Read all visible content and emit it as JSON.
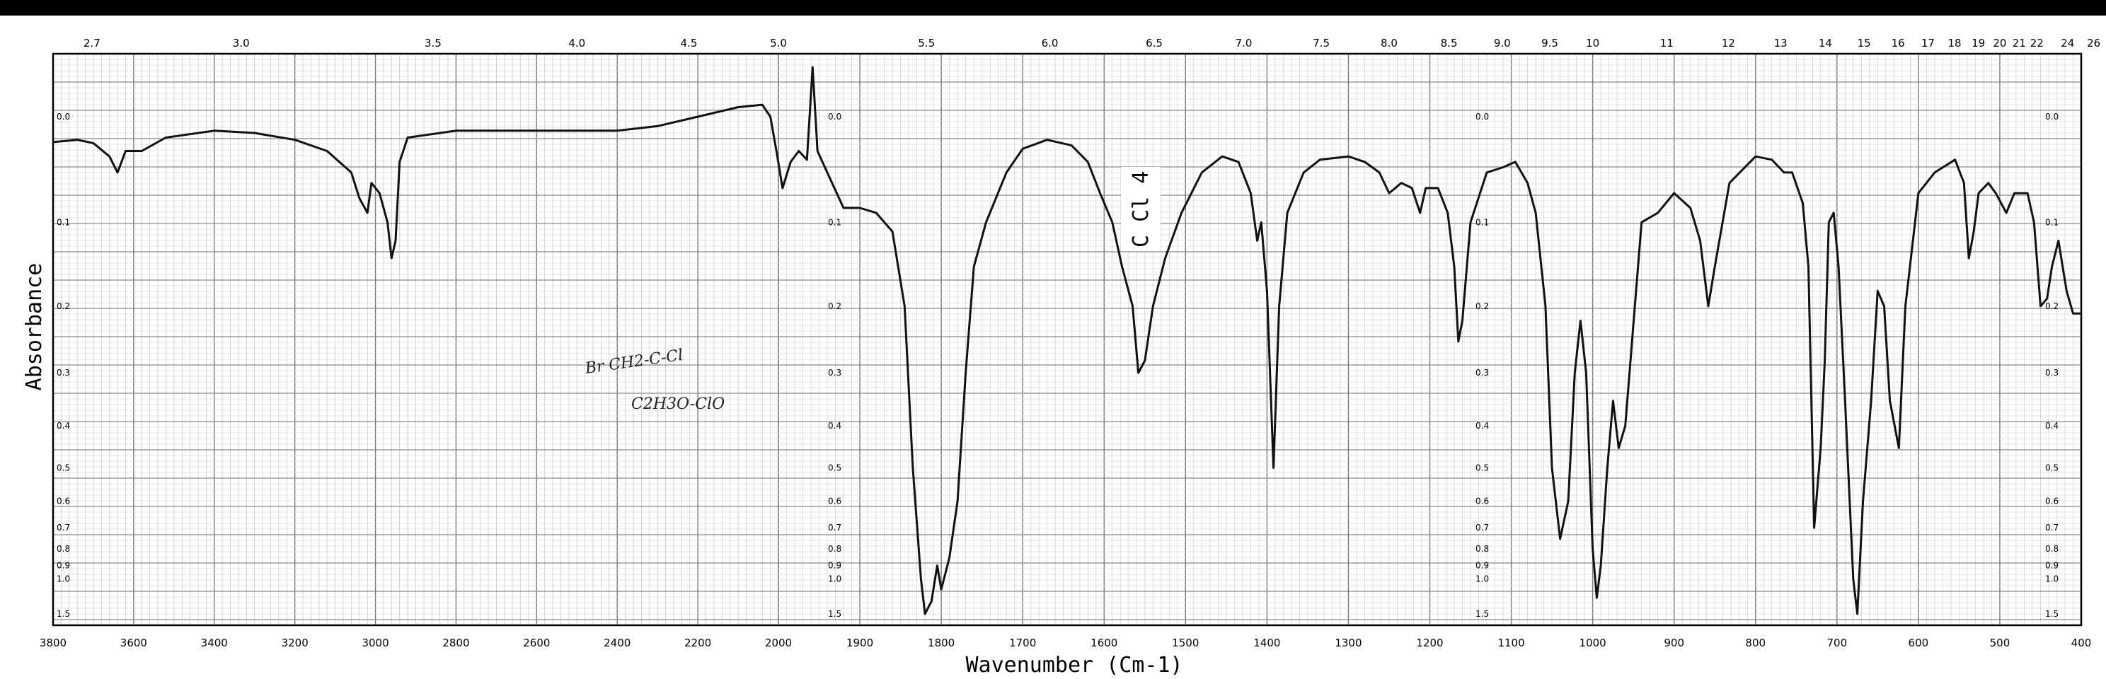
{
  "chart_data": {
    "type": "line",
    "title": "",
    "xlabel": "Wavenumber (Cm-1)",
    "ylabel": "Absorbance",
    "x_reversed": true,
    "bottom_ticks": [
      3800,
      3600,
      3400,
      3200,
      3000,
      2800,
      2600,
      2400,
      2200,
      2000,
      1900,
      1800,
      1700,
      1600,
      1500,
      1400,
      1300,
      1200,
      1100,
      1000,
      900,
      800,
      700,
      600,
      500,
      400
    ],
    "top_ticks_microns": [
      "2.7",
      "3.0",
      "3.5",
      "4.0",
      "4.5",
      "5.0",
      "5.5",
      "6.0",
      "6.5",
      "7.0",
      "7.5",
      "8.0",
      "8.5",
      "9.0",
      "9.5",
      "10",
      "11",
      "12",
      "13",
      "14",
      "15",
      "16",
      "17",
      "18",
      "19",
      "20",
      "21",
      "22",
      "24",
      "26"
    ],
    "absorbance_ticks": [
      "0.0",
      "0.1",
      "0.2",
      "0.3",
      "0.4",
      "0.5",
      "0.6",
      "0.7",
      "0.8",
      "0.9",
      "1.0",
      "1.5"
    ],
    "annotations": {
      "solvent_band": "C Cl 4",
      "handwritten_1": "Br CH2-C-Cl",
      "handwritten_2": "C2H3O-ClO"
    },
    "series": [
      {
        "points": [
          [
            3800,
            0.022
          ],
          [
            3740,
            0.02
          ],
          [
            3700,
            0.023
          ],
          [
            3660,
            0.035
          ],
          [
            3640,
            0.05
          ],
          [
            3620,
            0.03
          ],
          [
            3580,
            0.03
          ],
          [
            3520,
            0.018
          ],
          [
            3400,
            0.012
          ],
          [
            3300,
            0.014
          ],
          [
            3200,
            0.02
          ],
          [
            3120,
            0.03
          ],
          [
            3060,
            0.05
          ],
          [
            3040,
            0.075
          ],
          [
            3020,
            0.09
          ],
          [
            3010,
            0.06
          ],
          [
            2990,
            0.07
          ],
          [
            2970,
            0.1
          ],
          [
            2960,
            0.14
          ],
          [
            2950,
            0.12
          ],
          [
            2940,
            0.04
          ],
          [
            2920,
            0.018
          ],
          [
            2800,
            0.012
          ],
          [
            2600,
            0.012
          ],
          [
            2400,
            0.012
          ],
          [
            2300,
            0.008
          ],
          [
            2200,
            0.0
          ],
          [
            2100,
            -0.008
          ],
          [
            2040,
            -0.01
          ],
          [
            2020,
            0.0
          ],
          [
            2005,
            0.03
          ],
          [
            1995,
            0.065
          ],
          [
            1985,
            0.04
          ],
          [
            1975,
            0.03
          ],
          [
            1965,
            0.038
          ],
          [
            1958,
            -0.04
          ],
          [
            1952,
            0.03
          ],
          [
            1940,
            0.05
          ],
          [
            1920,
            0.085
          ],
          [
            1900,
            0.085
          ],
          [
            1880,
            0.09
          ],
          [
            1860,
            0.11
          ],
          [
            1845,
            0.2
          ],
          [
            1835,
            0.5
          ],
          [
            1825,
            1.0
          ],
          [
            1820,
            1.5
          ],
          [
            1812,
            1.25
          ],
          [
            1805,
            0.9
          ],
          [
            1800,
            1.1
          ],
          [
            1790,
            0.85
          ],
          [
            1780,
            0.6
          ],
          [
            1770,
            0.3
          ],
          [
            1760,
            0.15
          ],
          [
            1745,
            0.1
          ],
          [
            1720,
            0.05
          ],
          [
            1700,
            0.028
          ],
          [
            1670,
            0.02
          ],
          [
            1640,
            0.025
          ],
          [
            1620,
            0.04
          ],
          [
            1605,
            0.07
          ],
          [
            1590,
            0.1
          ],
          [
            1578,
            0.15
          ],
          [
            1565,
            0.2
          ],
          [
            1558,
            0.3
          ],
          [
            1550,
            0.28
          ],
          [
            1540,
            0.2
          ],
          [
            1525,
            0.14
          ],
          [
            1505,
            0.09
          ],
          [
            1480,
            0.05
          ],
          [
            1455,
            0.035
          ],
          [
            1435,
            0.04
          ],
          [
            1420,
            0.07
          ],
          [
            1412,
            0.12
          ],
          [
            1407,
            0.1
          ],
          [
            1400,
            0.18
          ],
          [
            1392,
            0.5
          ],
          [
            1385,
            0.2
          ],
          [
            1375,
            0.09
          ],
          [
            1355,
            0.05
          ],
          [
            1335,
            0.038
          ],
          [
            1300,
            0.035
          ],
          [
            1280,
            0.04
          ],
          [
            1262,
            0.05
          ],
          [
            1250,
            0.07
          ],
          [
            1235,
            0.06
          ],
          [
            1222,
            0.065
          ],
          [
            1212,
            0.09
          ],
          [
            1205,
            0.065
          ],
          [
            1190,
            0.065
          ],
          [
            1178,
            0.09
          ],
          [
            1170,
            0.15
          ],
          [
            1165,
            0.25
          ],
          [
            1160,
            0.22
          ],
          [
            1150,
            0.1
          ],
          [
            1130,
            0.05
          ],
          [
            1110,
            0.045
          ],
          [
            1095,
            0.04
          ],
          [
            1080,
            0.06
          ],
          [
            1070,
            0.09
          ],
          [
            1058,
            0.2
          ],
          [
            1050,
            0.5
          ],
          [
            1040,
            0.75
          ],
          [
            1030,
            0.6
          ],
          [
            1022,
            0.3
          ],
          [
            1015,
            0.22
          ],
          [
            1008,
            0.3
          ],
          [
            1000,
            0.8
          ],
          [
            995,
            1.2
          ],
          [
            990,
            0.9
          ],
          [
            982,
            0.5
          ],
          [
            975,
            0.35
          ],
          [
            968,
            0.45
          ],
          [
            960,
            0.4
          ],
          [
            940,
            0.1
          ],
          [
            920,
            0.09
          ],
          [
            900,
            0.07
          ],
          [
            880,
            0.085
          ],
          [
            868,
            0.12
          ],
          [
            858,
            0.2
          ],
          [
            850,
            0.15
          ],
          [
            832,
            0.06
          ],
          [
            800,
            0.035
          ],
          [
            780,
            0.038
          ],
          [
            765,
            0.05
          ],
          [
            755,
            0.05
          ],
          [
            742,
            0.08
          ],
          [
            735,
            0.15
          ],
          [
            728,
            0.7
          ],
          [
            720,
            0.45
          ],
          [
            715,
            0.28
          ],
          [
            710,
            0.1
          ],
          [
            704,
            0.09
          ],
          [
            698,
            0.15
          ],
          [
            690,
            0.35
          ],
          [
            680,
            1.0
          ],
          [
            675,
            1.5
          ],
          [
            668,
            0.6
          ],
          [
            658,
            0.35
          ],
          [
            650,
            0.18
          ],
          [
            642,
            0.2
          ],
          [
            635,
            0.35
          ],
          [
            624,
            0.45
          ],
          [
            616,
            0.2
          ],
          [
            600,
            0.07
          ],
          [
            580,
            0.05
          ],
          [
            555,
            0.038
          ],
          [
            544,
            0.06
          ],
          [
            538,
            0.14
          ],
          [
            532,
            0.11
          ],
          [
            526,
            0.07
          ],
          [
            514,
            0.06
          ],
          [
            505,
            0.07
          ],
          [
            492,
            0.09
          ],
          [
            482,
            0.07
          ],
          [
            466,
            0.07
          ],
          [
            458,
            0.1
          ],
          [
            450,
            0.2
          ],
          [
            442,
            0.19
          ],
          [
            436,
            0.15
          ],
          [
            428,
            0.12
          ],
          [
            418,
            0.18
          ],
          [
            410,
            0.21
          ],
          [
            400,
            0.21
          ]
        ]
      }
    ]
  }
}
